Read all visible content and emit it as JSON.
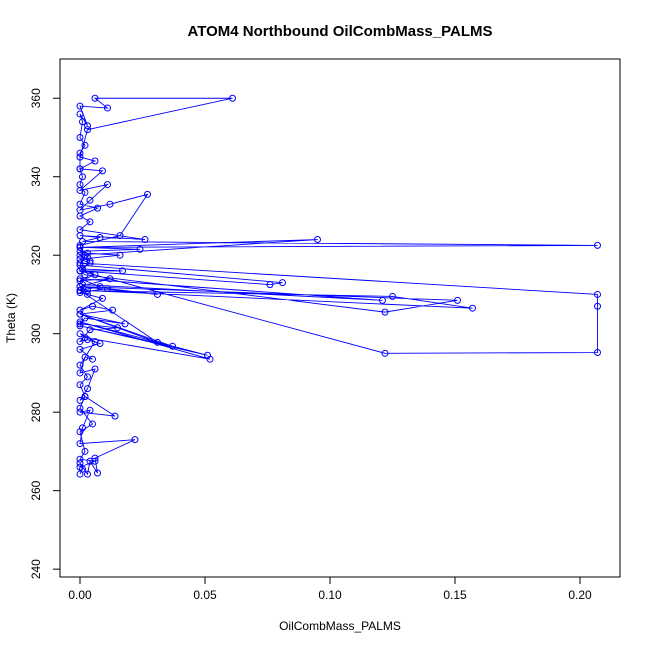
{
  "chart_data": {
    "type": "line",
    "title": "ATOM4 Northbound OilCombMass_PALMS",
    "xlabel": "OilCombMass_PALMS",
    "ylabel": "Theta (K)",
    "xlim": [
      -0.008,
      0.216
    ],
    "ylim": [
      238,
      370
    ],
    "xticks": [
      0.0,
      0.05,
      0.1,
      0.15,
      0.2
    ],
    "xtick_labels": [
      "0.00",
      "0.05",
      "0.10",
      "0.15",
      "0.20"
    ],
    "yticks": [
      240,
      260,
      280,
      300,
      320,
      340,
      360
    ],
    "ytick_labels": [
      "240",
      "260",
      "280",
      "300",
      "320",
      "340",
      "360"
    ],
    "grid": false,
    "series_color": "#0000ff",
    "points": [
      [
        0.0,
        264.2
      ],
      [
        0.001,
        265.5
      ],
      [
        0.0,
        267.0
      ],
      [
        0.003,
        264.2
      ],
      [
        0.004,
        267.5
      ],
      [
        0.007,
        264.5
      ],
      [
        0.006,
        268.3
      ],
      [
        0.022,
        273.0
      ],
      [
        0.0,
        272.0
      ],
      [
        0.001,
        276.0
      ],
      [
        0.004,
        280.5
      ],
      [
        0.0,
        280.0
      ],
      [
        0.014,
        279.0
      ],
      [
        0.002,
        284.0
      ],
      [
        0.0,
        283.0
      ],
      [
        0.003,
        286.0
      ],
      [
        0.006,
        291.0
      ],
      [
        0.0,
        290.0
      ],
      [
        0.002,
        294.0
      ],
      [
        0.005,
        293.5
      ],
      [
        0.0,
        296.0
      ],
      [
        0.008,
        297.5
      ],
      [
        0.003,
        298.5
      ],
      [
        0.0,
        298.0
      ],
      [
        0.004,
        301.0
      ],
      [
        0.015,
        301.5
      ],
      [
        0.0,
        302.5
      ],
      [
        0.002,
        304.0
      ],
      [
        0.018,
        302.5
      ],
      [
        0.0,
        305.0
      ],
      [
        0.013,
        306.0
      ],
      [
        0.005,
        307.0
      ],
      [
        0.0,
        306.0
      ],
      [
        0.009,
        309.0
      ],
      [
        0.003,
        310.0
      ],
      [
        0.0,
        310.5
      ],
      [
        0.011,
        311.5
      ],
      [
        0.031,
        310.0
      ],
      [
        0.0,
        312.0
      ],
      [
        0.012,
        314.0
      ],
      [
        0.0,
        313.5
      ],
      [
        0.006,
        315.0
      ],
      [
        0.001,
        316.5
      ],
      [
        0.017,
        316.0
      ],
      [
        0.0,
        316.0
      ],
      [
        0.004,
        318.0
      ],
      [
        0.0,
        319.0
      ],
      [
        0.016,
        320.0
      ],
      [
        0.003,
        320.5
      ],
      [
        0.0,
        321.0
      ],
      [
        0.024,
        321.5
      ],
      [
        0.0,
        322.0
      ],
      [
        0.207,
        322.5
      ],
      [
        0.001,
        323.5
      ],
      [
        0.008,
        324.5
      ],
      [
        0.0,
        325.0
      ],
      [
        0.026,
        324.0
      ],
      [
        0.0,
        326.5
      ],
      [
        0.004,
        328.5
      ],
      [
        0.0,
        330.0
      ],
      [
        0.007,
        332.0
      ],
      [
        0.0,
        333.0
      ],
      [
        0.002,
        336.0
      ],
      [
        0.0,
        338.0
      ],
      [
        0.001,
        340.0
      ],
      [
        0.0,
        342.0
      ],
      [
        0.0,
        346.0
      ],
      [
        0.002,
        348.0
      ],
      [
        0.0,
        350.0
      ],
      [
        0.001,
        354.0
      ],
      [
        0.0,
        356.0
      ],
      [
        0.003,
        353.0
      ],
      [
        0.0,
        358.0
      ],
      [
        0.011,
        357.5
      ],
      [
        0.006,
        360.0
      ],
      [
        0.061,
        360.0
      ],
      [
        0.003,
        352.0
      ],
      [
        0.0,
        345.0
      ],
      [
        0.006,
        344.0
      ],
      [
        0.0,
        342.0
      ],
      [
        0.009,
        341.5
      ],
      [
        0.0,
        336.5
      ],
      [
        0.011,
        338.0
      ],
      [
        0.004,
        334.0
      ],
      [
        0.0,
        331.5
      ],
      [
        0.012,
        333.0
      ],
      [
        0.027,
        335.5
      ],
      [
        0.016,
        325.0
      ],
      [
        0.0,
        322.5
      ],
      [
        0.002,
        320.0
      ],
      [
        0.0,
        317.5
      ],
      [
        0.081,
        313.0
      ],
      [
        0.076,
        312.5
      ],
      [
        0.0,
        316.0
      ],
      [
        0.004,
        318.5
      ],
      [
        0.0,
        320.0
      ],
      [
        0.095,
        324.0
      ],
      [
        0.0,
        322.0
      ],
      [
        0.003,
        319.5
      ],
      [
        0.0,
        318.0
      ],
      [
        0.207,
        310.0
      ],
      [
        0.207,
        307.0
      ],
      [
        0.207,
        295.2
      ],
      [
        0.122,
        295.0
      ],
      [
        0.0,
        316.0
      ],
      [
        0.002,
        315.0
      ],
      [
        0.122,
        305.5
      ],
      [
        0.151,
        308.5
      ],
      [
        0.0,
        312.0
      ],
      [
        0.003,
        311.0
      ],
      [
        0.157,
        306.5
      ],
      [
        0.125,
        309.5
      ],
      [
        0.0,
        311.0
      ],
      [
        0.001,
        312.5
      ],
      [
        0.121,
        308.5
      ],
      [
        0.0,
        314.0
      ],
      [
        0.008,
        312.0
      ],
      [
        0.0,
        311.0
      ],
      [
        0.031,
        297.8
      ],
      [
        0.0,
        305.0
      ],
      [
        0.037,
        296.8
      ],
      [
        0.0,
        302.0
      ],
      [
        0.051,
        294.5
      ],
      [
        0.0,
        303.0
      ],
      [
        0.052,
        293.5
      ],
      [
        0.002,
        299.0
      ],
      [
        0.0,
        300.0
      ],
      [
        0.006,
        298.0
      ],
      [
        0.0,
        292.0
      ],
      [
        0.003,
        289.0
      ],
      [
        0.0,
        287.0
      ],
      [
        0.002,
        284.0
      ],
      [
        0.0,
        281.0
      ],
      [
        0.005,
        277.0
      ],
      [
        0.0,
        275.0
      ],
      [
        0.002,
        270.0
      ],
      [
        0.0,
        268.0
      ],
      [
        0.006,
        267.5
      ],
      [
        0.0,
        266.0
      ]
    ]
  }
}
